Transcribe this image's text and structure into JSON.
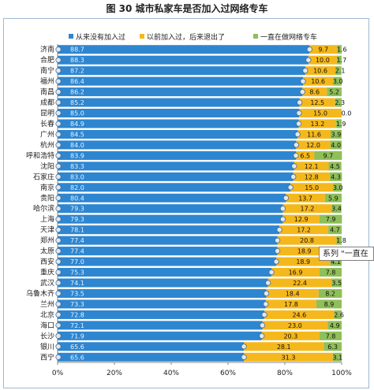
{
  "document": {
    "title": "图 30 城市私家车是否加入过网络专车",
    "tooltip_text": "系列 \"一直在"
  },
  "chart_data": {
    "type": "bar",
    "orientation": "horizontal",
    "stacked": true,
    "categories": [
      "济南",
      "合肥",
      "南宁",
      "福州",
      "南昌",
      "成都",
      "昆明",
      "长春",
      "广州",
      "杭州",
      "呼和浩特",
      "沈阳",
      "石家庄",
      "南京",
      "贵阳",
      "哈尔滨",
      "上海",
      "天津",
      "郑州",
      "太原",
      "西安",
      "重庆",
      "武汉",
      "乌鲁木齐",
      "兰州",
      "北京",
      "海口",
      "长沙",
      "银川",
      "西宁"
    ],
    "series": [
      {
        "name": "从来没有加入过",
        "color": "#2e86d0",
        "values": [
          88.7,
          88.3,
          87.2,
          86.4,
          86.2,
          85.2,
          85.0,
          84.9,
          84.5,
          84.0,
          83.9,
          83.3,
          83.0,
          82.0,
          80.4,
          79.3,
          79.3,
          78.1,
          77.4,
          77.4,
          77.0,
          75.3,
          74.1,
          73.5,
          73.3,
          72.8,
          72.1,
          71.9,
          65.6,
          65.6
        ]
      },
      {
        "name": "以前加入过，后来退出了",
        "color": "#f5b81c",
        "values": [
          9.7,
          10.0,
          10.6,
          10.6,
          8.6,
          12.5,
          15.0,
          13.2,
          11.6,
          12.0,
          6.5,
          12.1,
          12.8,
          15.0,
          13.7,
          17.2,
          12.9,
          17.2,
          20.8,
          18.9,
          18.9,
          16.9,
          22.4,
          18.4,
          17.8,
          24.6,
          23.0,
          20.3,
          28.1,
          31.3
        ]
      },
      {
        "name": "一直在做网络专车",
        "color": "#8fbf58",
        "values": [
          1.6,
          1.7,
          2.1,
          3.0,
          5.2,
          2.3,
          0.0,
          1.9,
          3.9,
          4.0,
          9.7,
          4.5,
          4.3,
          3.0,
          5.9,
          3.4,
          7.9,
          4.7,
          1.8,
          3.8,
          4.1,
          7.8,
          3.5,
          8.2,
          8.9,
          2.6,
          4.9,
          7.8,
          6.3,
          3.1
        ]
      }
    ],
    "xlim": [
      0,
      100
    ],
    "x_tick_labels": [
      "0%",
      "20%",
      "40%",
      "60%",
      "80%",
      "100%"
    ],
    "grid": false,
    "legend_position": "top"
  }
}
